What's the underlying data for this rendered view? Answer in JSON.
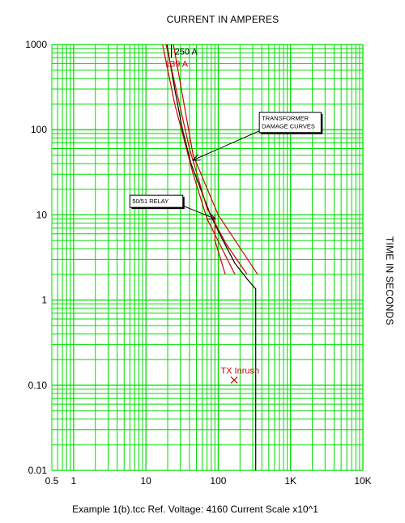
{
  "chart_data": {
    "type": "line",
    "xlabel": "CURRENT IN AMPERES",
    "ylabel": "TIME IN SECONDS",
    "x_scale": "log",
    "y_scale": "log",
    "xlim": [
      0.5,
      10000
    ],
    "ylim": [
      0.01,
      1000
    ],
    "grid": true,
    "grid_color": "#00dd00",
    "x_tick_labels": [
      {
        "value": 0.5,
        "label": "0.5"
      },
      {
        "value": 1,
        "label": "1"
      },
      {
        "value": 10,
        "label": "10"
      },
      {
        "value": 100,
        "label": "100"
      },
      {
        "value": 1000,
        "label": "1K"
      },
      {
        "value": 10000,
        "label": "10K"
      }
    ],
    "y_tick_labels": [
      {
        "value": 1000,
        "label": "1000"
      },
      {
        "value": 100,
        "label": "100"
      },
      {
        "value": 10,
        "label": "10"
      },
      {
        "value": 1,
        "label": "1"
      },
      {
        "value": 0.1,
        "label": "0.10"
      },
      {
        "value": 0.01,
        "label": "0.01"
      }
    ],
    "series": [
      {
        "color": "#000000",
        "x": [
          19.5,
          25,
          32,
          42,
          60,
          80,
          110,
          170,
          260,
          330,
          330
        ],
        "y": [
          1000,
          300,
          100,
          40,
          18,
          9.5,
          5.5,
          2.7,
          1.7,
          1.35,
          0.01
        ]
      },
      {
        "color": "#000000",
        "x": [
          22.5,
          22.5
        ],
        "y": [
          1000,
          700
        ]
      },
      {
        "color": "#d00000",
        "x": [
          17,
          25,
          45,
          70,
          170
        ],
        "y": [
          1000,
          200,
          30,
          9,
          2
        ]
      },
      {
        "color": "#d00000",
        "x": [
          19,
          40,
          70,
          130,
          250
        ],
        "y": [
          1000,
          60,
          12,
          4.5,
          2
        ]
      },
      {
        "color": "#d00000",
        "x": [
          24,
          45,
          100,
          350
        ],
        "y": [
          1000,
          50,
          10,
          2
        ]
      },
      {
        "color": "#d00000",
        "x": [
          90,
          90,
          125
        ],
        "y": [
          10,
          5,
          2
        ]
      }
    ],
    "inrush_point": {
      "x": 166,
      "y": 0.115,
      "marker": "X",
      "color": "#d00000"
    },
    "annotations": [
      {
        "text": "250 A",
        "color": "#000000",
        "x": 25,
        "y": 830
      },
      {
        "text": "139 A",
        "color": "#d00000",
        "x": 18.5,
        "y": 600
      },
      {
        "text": "TX Inrush",
        "color": "#d00000",
        "x": 108,
        "y": 0.15
      }
    ],
    "callouts": [
      {
        "lines": [
          "TRANSFORMER",
          "DAMAGE CURVES"
        ],
        "box_x": 370,
        "box_y": 160,
        "target_x": 45,
        "target_y": 44
      },
      {
        "lines": [
          "50/51 RELAY"
        ],
        "box_x": 6,
        "box_y": 17,
        "target_x": 90,
        "target_y": 9
      }
    ]
  },
  "footer": {
    "text": "Example 1(b).tcc   Ref. Voltage: 4160   Current Scale x10^1"
  }
}
